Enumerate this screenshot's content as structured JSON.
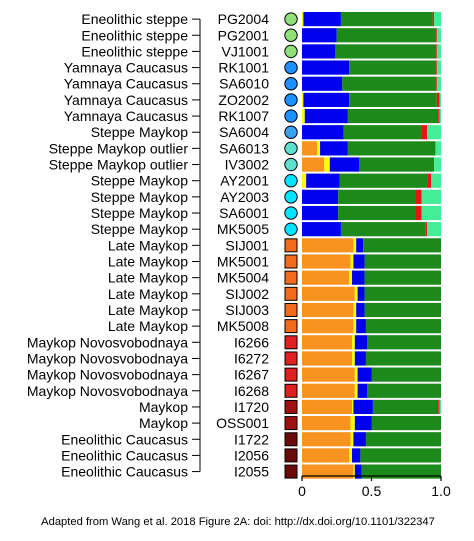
{
  "chart_data": {
    "type": "bar",
    "stacked": true,
    "orientation": "horizontal",
    "xlim": [
      0,
      1
    ],
    "x_ticks": [
      "0",
      "0.5",
      "1.0"
    ],
    "component_colors": [
      "#f7931e",
      "#ffff00",
      "#0000ee",
      "#1b8a1b",
      "#ee1111",
      "#44ee99"
    ],
    "group_colors": {
      "Eneolithic steppe": "#90e07a",
      "Yamnaya Caucasus": "#1e90ff",
      "Steppe Maykop": "#3aa0f0",
      "Steppe Maykop outlier": "#5ee0d0",
      "Steppe Maykop (AY/SA6001/MK5005)": "#00e5ff",
      "Late Maykop": "#f26a1b",
      "Maykop Novosvobodnaya": "#e02020",
      "Maykop": "#a01010",
      "Eneolithic Caucasus": "#6b0a0a"
    },
    "rows": [
      {
        "group": "Eneolithic steppe",
        "sample": "PG2004",
        "dot": "#90e07a",
        "values": [
          0,
          0.01,
          0.27,
          0.66,
          0.01,
          0.05
        ]
      },
      {
        "group": "Eneolithic steppe",
        "sample": "PG2001",
        "dot": "#90e07a",
        "values": [
          0,
          0,
          0.25,
          0.71,
          0.01,
          0.03
        ]
      },
      {
        "group": "Eneolithic steppe",
        "sample": "VJ1001",
        "dot": "#90e07a",
        "values": [
          0,
          0,
          0.24,
          0.72,
          0.01,
          0.03
        ]
      },
      {
        "group": "Yamnaya Caucasus",
        "sample": "RK1001",
        "dot": "#1e90ff",
        "values": [
          0,
          0,
          0.34,
          0.62,
          0.01,
          0.03
        ]
      },
      {
        "group": "Yamnaya Caucasus",
        "sample": "SA6010",
        "dot": "#1e90ff",
        "values": [
          0,
          0,
          0.29,
          0.67,
          0.01,
          0.03
        ]
      },
      {
        "group": "Yamnaya Caucasus",
        "sample": "ZO2002",
        "dot": "#1e90ff",
        "values": [
          0,
          0.01,
          0.33,
          0.63,
          0.02,
          0.01
        ]
      },
      {
        "group": "Yamnaya Caucasus",
        "sample": "RK1007",
        "dot": "#1e90ff",
        "values": [
          0,
          0.02,
          0.31,
          0.65,
          0.01,
          0.01
        ]
      },
      {
        "group": "Steppe Maykop",
        "sample": "SA6004",
        "dot": "#3aa0f0",
        "values": [
          0,
          0,
          0.3,
          0.56,
          0.04,
          0.1
        ]
      },
      {
        "group": "Steppe Maykop outlier",
        "sample": "SA6013",
        "dot": "#5ee0d0",
        "values": [
          0.11,
          0.02,
          0.2,
          0.63,
          0,
          0.04
        ]
      },
      {
        "group": "Steppe Maykop outlier",
        "sample": "IV3002",
        "dot": "#5ee0d0",
        "values": [
          0.16,
          0.04,
          0.21,
          0.54,
          0,
          0.05
        ]
      },
      {
        "group": "Steppe Maykop",
        "sample": "AY2001",
        "dot": "#00e5ff",
        "values": [
          0,
          0.03,
          0.24,
          0.63,
          0.03,
          0.07
        ]
      },
      {
        "group": "Steppe Maykop",
        "sample": "AY2003",
        "dot": "#00e5ff",
        "values": [
          0,
          0,
          0.26,
          0.56,
          0.04,
          0.14
        ]
      },
      {
        "group": "Steppe Maykop",
        "sample": "SA6001",
        "dot": "#00e5ff",
        "values": [
          0,
          0,
          0.26,
          0.56,
          0.04,
          0.14
        ]
      },
      {
        "group": "Steppe Maykop",
        "sample": "MK5005",
        "dot": "#00e5ff",
        "values": [
          0,
          0,
          0.28,
          0.61,
          0.01,
          0.1
        ]
      },
      {
        "group": "Late Maykop",
        "sample": "SIJ001",
        "dot": "#f26a1b",
        "values": [
          0.37,
          0.02,
          0.05,
          0.56,
          0,
          0
        ]
      },
      {
        "group": "Late Maykop",
        "sample": "MK5001",
        "dot": "#f26a1b",
        "values": [
          0.35,
          0.02,
          0.08,
          0.55,
          0,
          0
        ]
      },
      {
        "group": "Late Maykop",
        "sample": "MK5004",
        "dot": "#f26a1b",
        "values": [
          0.34,
          0.02,
          0.09,
          0.55,
          0,
          0
        ]
      },
      {
        "group": "Late Maykop",
        "sample": "SIJ002",
        "dot": "#f26a1b",
        "values": [
          0.38,
          0.02,
          0.05,
          0.55,
          0,
          0
        ]
      },
      {
        "group": "Late Maykop",
        "sample": "SIJ003",
        "dot": "#f26a1b",
        "values": [
          0.37,
          0.02,
          0.06,
          0.55,
          0,
          0
        ]
      },
      {
        "group": "Late Maykop",
        "sample": "MK5008",
        "dot": "#f26a1b",
        "values": [
          0.37,
          0.02,
          0.07,
          0.54,
          0,
          0
        ]
      },
      {
        "group": "Maykop Novosvobodnaya",
        "sample": "I6266",
        "dot": "#e02020",
        "values": [
          0.36,
          0.02,
          0.09,
          0.53,
          0,
          0
        ]
      },
      {
        "group": "Maykop Novosvobodnaya",
        "sample": "I6272",
        "dot": "#e02020",
        "values": [
          0.36,
          0.02,
          0.08,
          0.54,
          0,
          0
        ]
      },
      {
        "group": "Maykop Novosvobodnaya",
        "sample": "I6267",
        "dot": "#e02020",
        "values": [
          0.38,
          0.02,
          0.1,
          0.5,
          0,
          0
        ]
      },
      {
        "group": "Maykop Novosvobodnaya",
        "sample": "I6268",
        "dot": "#e02020",
        "values": [
          0.38,
          0.02,
          0.07,
          0.53,
          0,
          0
        ]
      },
      {
        "group": "Maykop",
        "sample": "I1720",
        "dot": "#a01010",
        "values": [
          0.36,
          0.01,
          0.14,
          0.47,
          0.01,
          0.01
        ]
      },
      {
        "group": "Maykop",
        "sample": "OSS001",
        "dot": "#a01010",
        "values": [
          0.35,
          0.03,
          0.12,
          0.5,
          0,
          0
        ]
      },
      {
        "group": "Eneolithic Caucasus",
        "sample": "I1722",
        "dot": "#6b0a0a",
        "values": [
          0.35,
          0.02,
          0.09,
          0.54,
          0,
          0
        ]
      },
      {
        "group": "Eneolithic Caucasus",
        "sample": "I2056",
        "dot": "#6b0a0a",
        "values": [
          0.34,
          0.02,
          0.06,
          0.58,
          0,
          0
        ]
      },
      {
        "group": "Eneolithic Caucasus",
        "sample": "I2055",
        "dot": "#6b0a0a",
        "values": [
          0.37,
          0.01,
          0.05,
          0.57,
          0,
          0
        ]
      }
    ]
  },
  "caption": "Adapted from Wang et al. 2018 Figure 2A: doi: http://dx.doi.org/10.1101/322347"
}
